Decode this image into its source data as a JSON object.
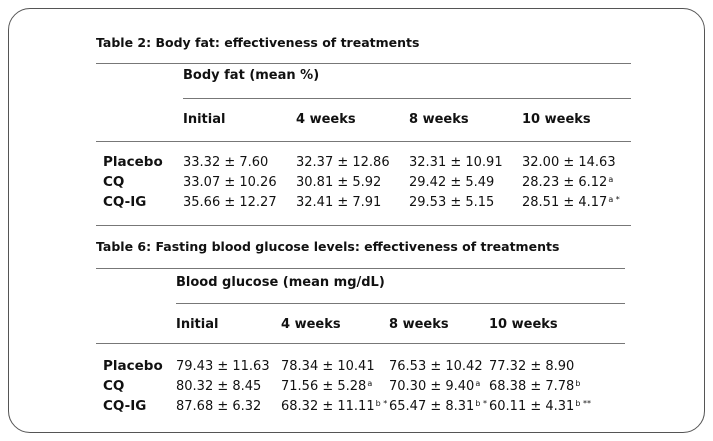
{
  "tables": [
    {
      "title": "Table 2: Body fat: effectiveness of treatments",
      "group_header": "Body fat (mean %)",
      "columns": [
        "Initial",
        "4 weeks",
        "8 weeks",
        "10 weeks"
      ],
      "rows": [
        {
          "label": "Placebo",
          "cells": [
            {
              "v": "33.32 ± 7.60",
              "s": ""
            },
            {
              "v": "32.37 ± 12.86",
              "s": ""
            },
            {
              "v": "32.31 ± 10.91",
              "s": ""
            },
            {
              "v": "32.00 ± 14.63",
              "s": ""
            }
          ]
        },
        {
          "label": "CQ",
          "cells": [
            {
              "v": "33.07 ± 10.26",
              "s": ""
            },
            {
              "v": "30.81 ± 5.92",
              "s": ""
            },
            {
              "v": "29.42 ± 5.49",
              "s": ""
            },
            {
              "v": "28.23 ± 6.12",
              "s": "a"
            }
          ]
        },
        {
          "label": "CQ-IG",
          "cells": [
            {
              "v": "35.66 ± 12.27",
              "s": ""
            },
            {
              "v": "32.41 ± 7.91",
              "s": ""
            },
            {
              "v": "29.53 ± 5.15",
              "s": ""
            },
            {
              "v": "28.51 ± 4.17",
              "s": "a *"
            }
          ]
        }
      ]
    },
    {
      "title": "Table 6: Fasting blood glucose levels: effectiveness of treatments",
      "group_header": "Blood glucose (mean mg/dL)",
      "columns": [
        "Initial",
        "4 weeks",
        "8 weeks",
        "10 weeks"
      ],
      "rows": [
        {
          "label": "Placebo",
          "cells": [
            {
              "v": "79.43 ± 11.63",
              "s": ""
            },
            {
              "v": "78.34 ± 10.41",
              "s": ""
            },
            {
              "v": "76.53 ± 10.42",
              "s": ""
            },
            {
              "v": "77.32 ± 8.90",
              "s": ""
            }
          ]
        },
        {
          "label": "CQ",
          "cells": [
            {
              "v": "80.32 ± 8.45",
              "s": ""
            },
            {
              "v": "71.56 ± 5.28",
              "s": "a"
            },
            {
              "v": "70.30 ± 9.40",
              "s": "a"
            },
            {
              "v": "68.38 ± 7.78",
              "s": "b"
            }
          ]
        },
        {
          "label": "CQ-IG",
          "cells": [
            {
              "v": "87.68 ± 6.32",
              "s": ""
            },
            {
              "v": "68.32 ± 11.11",
              "s": "b *"
            },
            {
              "v": "65.47 ± 8.31",
              "s": "b *"
            },
            {
              "v": "60.11 ± 4.31",
              "s": "b **"
            }
          ]
        }
      ]
    }
  ]
}
